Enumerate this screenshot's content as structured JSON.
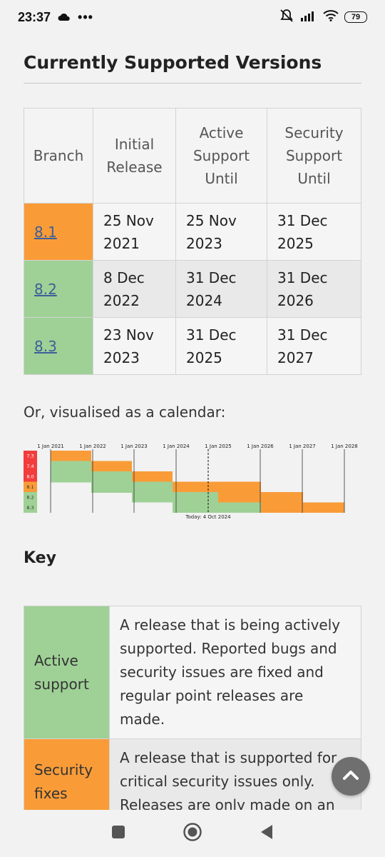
{
  "status_bar": {
    "time": "23:37",
    "icons": [
      "cloud-icon",
      "more-dots-icon",
      "mute-icon",
      "signal-icon",
      "wifi-icon"
    ],
    "battery": "79"
  },
  "page": {
    "title": "Currently Supported Versions",
    "table": {
      "headers": [
        "Branch",
        "Initial Release",
        "Active Support Until",
        "Security Support Until"
      ],
      "rows": [
        {
          "branch": "8.1",
          "initial": "25 Nov 2021",
          "active": "25 Nov 2023",
          "security": "31 Dec 2025",
          "status": "security"
        },
        {
          "branch": "8.2",
          "initial": "8 Dec 2022",
          "active": "31 Dec 2024",
          "security": "31 Dec 2026",
          "status": "active"
        },
        {
          "branch": "8.3",
          "initial": "23 Nov 2023",
          "active": "31 Dec 2025",
          "security": "31 Dec 2027",
          "status": "active"
        }
      ]
    },
    "calendar_intro": "Or, visualised as a calendar:",
    "calendar": {
      "years": [
        "1 Jan 2021",
        "1 Jan 2022",
        "1 Jan 2023",
        "1 Jan 2024",
        "1 Jan 2025",
        "1 Jan 2026",
        "1 Jan 2027",
        "1 Jan 2028"
      ],
      "branches": [
        "7.3",
        "7.4",
        "8.0",
        "8.1",
        "8.2",
        "8.3"
      ],
      "today_label": "Today: 4 Oct 2024"
    },
    "key_title": "Key",
    "key": [
      {
        "label": "Active support",
        "desc": "A release that is being actively supported. Reported bugs and security issues are fixed and regular point releases are made."
      },
      {
        "label": "Security fixes only",
        "desc": "A release that is supported for critical security issues only. Releases are only made on an as-needed basis."
      }
    ]
  },
  "colors": {
    "active": "#9fd196",
    "security": "#f99c38",
    "eol": "#f33d3d",
    "link": "#3c5f9a"
  }
}
